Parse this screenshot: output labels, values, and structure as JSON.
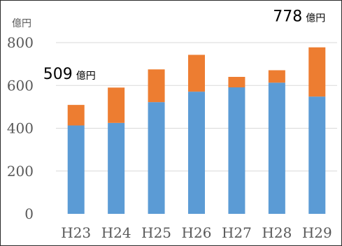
{
  "chart_data": {
    "type": "bar",
    "stacked": true,
    "categories": [
      "H23",
      "H24",
      "H25",
      "H26",
      "H27",
      "H28",
      "H29"
    ],
    "series": [
      {
        "values": [
          413,
          425,
          522,
          571,
          591,
          613,
          548
        ],
        "color": "#5b9bd5"
      },
      {
        "values": [
          96,
          165,
          153,
          172,
          49,
          58,
          230
        ],
        "color": "#ed7d31"
      }
    ],
    "totals": [
      509,
      590,
      675,
      743,
      640,
      671,
      778
    ],
    "yunit": "億円",
    "yticks": [
      0,
      200,
      400,
      600,
      800
    ],
    "ylim": [
      0,
      800
    ],
    "grid": true,
    "grid_color": "#d9d9d9",
    "legend": "none",
    "annotations": [
      {
        "category": "H23",
        "value": "509",
        "unit": "億円"
      },
      {
        "category": "H29",
        "value": "778",
        "unit": "億円"
      }
    ]
  }
}
